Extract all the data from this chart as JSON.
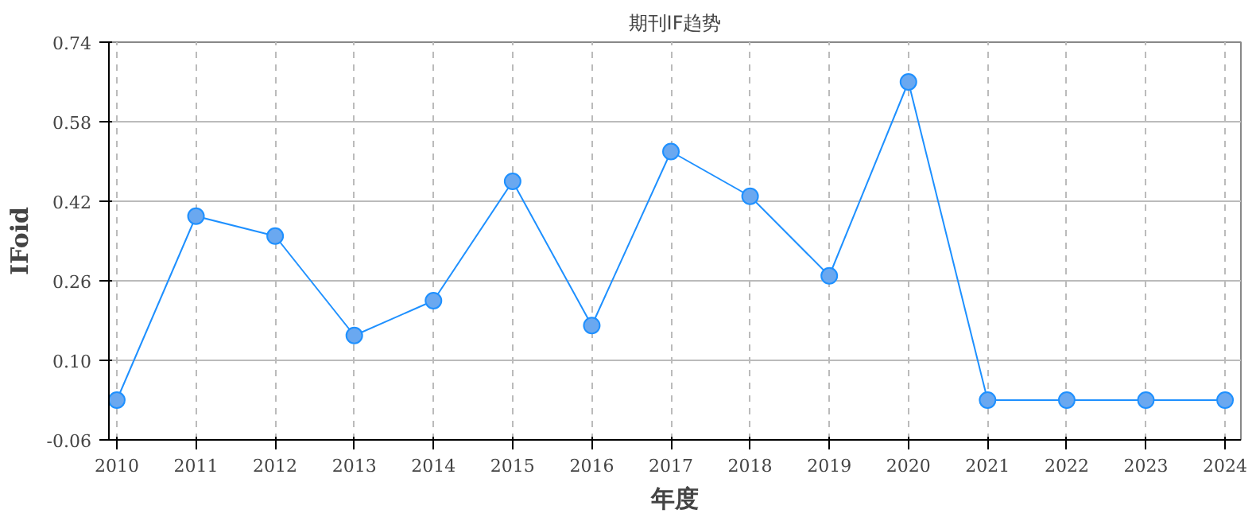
{
  "chart_data": {
    "type": "line",
    "title": "期刊IF趋势",
    "xlabel": "年度",
    "ylabel": "IFoid",
    "x": [
      2010,
      2011,
      2012,
      2013,
      2014,
      2015,
      2016,
      2017,
      2018,
      2019,
      2020,
      2021,
      2022,
      2023,
      2024
    ],
    "series": [
      {
        "color": "#1e90ff",
        "values": [
          0.02,
          0.39,
          0.35,
          0.15,
          0.22,
          0.46,
          0.17,
          0.52,
          0.43,
          0.27,
          0.66,
          0.02,
          0.02,
          0.02,
          0.02
        ]
      }
    ],
    "xlim": [
      2009.9,
      2024.2
    ],
    "xticks": [
      2010,
      2011,
      2012,
      2013,
      2014,
      2015,
      2016,
      2017,
      2018,
      2019,
      2020,
      2021,
      2022,
      2023,
      2024
    ],
    "ylim": [
      -0.06,
      0.74
    ],
    "yticks": [
      -0.06,
      {
        "value": 0.1,
        "label": "0.10"
      },
      0.26,
      0.42,
      0.58,
      0.74
    ],
    "grid": true,
    "marker": "circle",
    "line_style": "solid"
  }
}
